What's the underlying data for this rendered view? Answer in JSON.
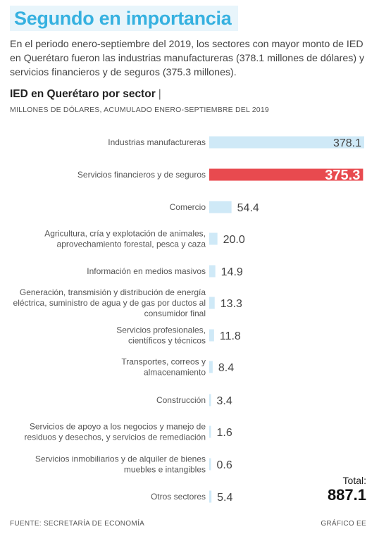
{
  "headline": "Segundo en importancia",
  "intro": "En el periodo enero-septiembre del 2019, los sectores con mayor monto de IED en Querétaro fueron las industrias manufactureras (378.1 millones de dólares) y servicios financieros y de seguros (375.3 millones).",
  "colors": {
    "bar": "#cfe9f7",
    "highlight": "#e84a4f",
    "headline": "#36b1e0"
  },
  "chart_data": {
    "type": "bar",
    "orientation": "horizontal",
    "title": "IED en Querétaro por sector",
    "subtitle": "MILLONES DE DÓLARES, ACUMULADO ENERO-SEPTIEMBRE DEL 2019",
    "xlim": [
      0,
      378.1
    ],
    "categories": [
      [
        "Industrias manufactureras"
      ],
      [
        "Servicios financieros y de seguros"
      ],
      [
        "Comercio"
      ],
      [
        "Agricultura, cría y explotación de animales,",
        "aprovechamiento forestal, pesca y caza"
      ],
      [
        "Información en medios masivos"
      ],
      [
        "Generación, transmisión y distribución de energía",
        "eléctrica, suministro de agua y de gas por ductos al",
        "consumidor final"
      ],
      [
        "Servicios profesionales,",
        "científicos y técnicos"
      ],
      [
        "Transportes, correos y",
        "almacenamiento"
      ],
      [
        "Construcción"
      ],
      [
        "Servicios de apoyo a los negocios y manejo de",
        "residuos y desechos, y servicios de remediación"
      ],
      [
        "Servicios inmobiliarios y de alquiler de bienes",
        "muebles e intangibles"
      ],
      [
        "Otros sectores"
      ]
    ],
    "values": [
      378.1,
      375.3,
      54.4,
      20.0,
      14.9,
      13.3,
      11.8,
      8.4,
      3.4,
      1.6,
      0.6,
      5.4
    ],
    "value_labels": [
      "378.1",
      "375.3",
      "54.4",
      "20.0",
      "14.9",
      "13.3",
      "11.8",
      "8.4",
      "3.4",
      "1.6",
      "0.6",
      "5.4"
    ],
    "highlight_index": 1
  },
  "total": {
    "label": "Total:",
    "value": "887.1"
  },
  "source": "FUENTE: SECRETARÍA DE ECONOMÍA",
  "credit": "GRÁFICO EE"
}
